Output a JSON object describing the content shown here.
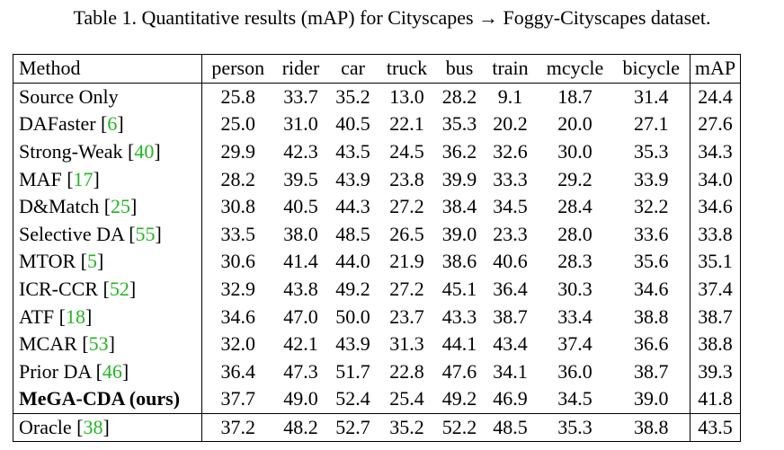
{
  "caption": "Table 1. Quantitative results (mAP) for Cityscapes → Foggy-Cityscapes dataset.",
  "headers": [
    "Method",
    "person",
    "rider",
    "car",
    "truck",
    "bus",
    "train",
    "mcycle",
    "bicycle",
    "mAP"
  ],
  "rows": [
    {
      "name": "Source Only",
      "cite": "",
      "values": [
        "25.8",
        "33.7",
        "35.2",
        "13.0",
        "28.2",
        "9.1",
        "18.7",
        "31.4",
        "24.4"
      ],
      "bold": []
    },
    {
      "name": "DAFaster",
      "cite": "6",
      "values": [
        "25.0",
        "31.0",
        "40.5",
        "22.1",
        "35.3",
        "20.2",
        "20.0",
        "27.1",
        "27.6"
      ],
      "bold": []
    },
    {
      "name": "Strong-Weak",
      "cite": "40",
      "values": [
        "29.9",
        "42.3",
        "43.5",
        "24.5",
        "36.2",
        "32.6",
        "30.0",
        "35.3",
        "34.3"
      ],
      "bold": []
    },
    {
      "name": "MAF",
      "cite": "17",
      "values": [
        "28.2",
        "39.5",
        "43.9",
        "23.8",
        "39.9",
        "33.3",
        "29.2",
        "33.9",
        "34.0"
      ],
      "bold": []
    },
    {
      "name": "D&Match",
      "cite": "25",
      "values": [
        "30.8",
        "40.5",
        "44.3",
        "27.2",
        "38.4",
        "34.5",
        "28.4",
        "32.2",
        "34.6"
      ],
      "bold": []
    },
    {
      "name": "Selective DA",
      "cite": "55",
      "values": [
        "33.5",
        "38.0",
        "48.5",
        "26.5",
        "39.0",
        "23.3",
        "28.0",
        "33.6",
        "33.8"
      ],
      "bold": []
    },
    {
      "name": "MTOR",
      "cite": "5",
      "values": [
        "30.6",
        "41.4",
        "44.0",
        "21.9",
        "38.6",
        "40.6",
        "28.3",
        "35.6",
        "35.1"
      ],
      "bold": []
    },
    {
      "name": "ICR-CCR",
      "cite": "52",
      "values": [
        "32.9",
        "43.8",
        "49.2",
        "27.2",
        "45.1",
        "36.4",
        "30.3",
        "34.6",
        "37.4"
      ],
      "bold": []
    },
    {
      "name": "ATF",
      "cite": "18",
      "values": [
        "34.6",
        "47.0",
        "50.0",
        "23.7",
        "43.3",
        "38.7",
        "33.4",
        "38.8",
        "38.7"
      ],
      "bold": []
    },
    {
      "name": "MCAR",
      "cite": "53",
      "values": [
        "32.0",
        "42.1",
        "43.9",
        "31.3",
        "44.1",
        "43.4",
        "37.4",
        "36.6",
        "38.8"
      ],
      "bold": [
        3,
        6
      ]
    },
    {
      "name": "Prior DA",
      "cite": "46",
      "values": [
        "36.4",
        "47.3",
        "51.7",
        "22.8",
        "47.6",
        "34.1",
        "36.0",
        "38.7",
        "39.3"
      ],
      "bold": []
    },
    {
      "name": "MeGA-CDA (ours)",
      "cite": "",
      "values": [
        "37.7",
        "49.0",
        "52.4",
        "25.4",
        "49.2",
        "46.9",
        "34.5",
        "39.0",
        "41.8"
      ],
      "bold": [
        0,
        1,
        2,
        4,
        5,
        7,
        8
      ]
    },
    {
      "name": "Oracle",
      "cite": "38",
      "values": [
        "37.2",
        "48.2",
        "52.7",
        "35.2",
        "52.2",
        "48.5",
        "35.3",
        "38.8",
        "43.5"
      ],
      "bold": [],
      "separator": true
    }
  ]
}
